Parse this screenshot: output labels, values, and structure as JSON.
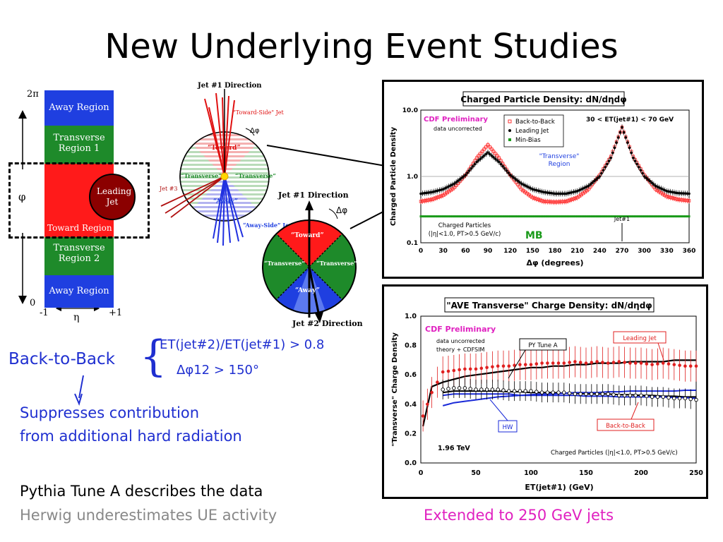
{
  "title": "New Underlying Event Studies",
  "left_diagram": {
    "two_pi": "2π",
    "zero": "0",
    "phi": "φ",
    "eta": "η",
    "minus_one": "-1",
    "plus_one": "+1",
    "regions": [
      "Away Region",
      "Transverse Region 1",
      "Toward Region",
      "Transverse Region 2",
      "Away Region"
    ],
    "leading_jet": "Leading Jet",
    "colors": {
      "away": "#1f3fe0",
      "transverse": "#1e8a2a",
      "toward": "#ff1a1a",
      "jet": "#8b0000"
    }
  },
  "jet_diagram": {
    "jet1_direction_top": "Jet #1 Direction",
    "toward_side": "\"Toward-Side\" Jet",
    "toward": "“Toward”",
    "transverse": "“Transverse”",
    "away": "“Away”",
    "away_side": "“Away-Side” Jet",
    "jet3": "Jet #3",
    "delta_phi": "Δφ",
    "jet1_direction": "Jet #1 Direction",
    "jet2_direction": "Jet #2 Direction"
  },
  "cuts": {
    "line1": "ET(jet#2)/ET(jet#1) > 0.8",
    "line2": "Δφ12 > 150°"
  },
  "notes": {
    "back_to_back": "Back-to-Back",
    "suppresses1": "Suppresses contribution",
    "suppresses2": "from additional hard radiation",
    "pythia": "Pythia Tune A describes the data",
    "herwig": "Herwig underestimates UE activity",
    "extended": "Extended to 250 GeV jets"
  },
  "chart_data": [
    {
      "type": "scatter",
      "title": "Charged Particle Density: dN/dηdφ",
      "xlabel": "Δφ  (degrees)",
      "ylabel": "Charged Particle Density",
      "xlim": [
        0,
        360
      ],
      "ylim": [
        0.1,
        10.0
      ],
      "log_y": true,
      "xticks": [
        0,
        30,
        60,
        90,
        120,
        150,
        180,
        210,
        240,
        270,
        300,
        330,
        360
      ],
      "yticks": [
        "0.1",
        "1.0",
        "10.0"
      ],
      "annotations": [
        "CDF Preliminary",
        "data uncorrected",
        "30 < ET(jet#1) < 70 GeV",
        "\"Transverse\" Region",
        "Charged Particles",
        "(|η|<1.0, PT>0.5 GeV/c)",
        "Jet#1",
        "MB"
      ],
      "legend": {
        "placement": "top-left",
        "entries": [
          "Back-to-Back",
          "Leading Jet",
          "Min-Bias"
        ]
      },
      "x": [
        0,
        15,
        30,
        45,
        60,
        75,
        90,
        105,
        120,
        135,
        150,
        165,
        180,
        195,
        210,
        225,
        240,
        255,
        270,
        285,
        300,
        315,
        330,
        345,
        360
      ],
      "series": [
        {
          "name": "Back-to-Back",
          "color": "#ff3030",
          "values": [
            0.42,
            0.45,
            0.52,
            0.68,
            1.05,
            1.9,
            3.0,
            1.9,
            1.05,
            0.64,
            0.48,
            0.42,
            0.41,
            0.42,
            0.48,
            0.64,
            1.05,
            2.0,
            5.5,
            2.0,
            1.05,
            0.64,
            0.5,
            0.45,
            0.43
          ]
        },
        {
          "name": "Leading Jet",
          "color": "#000000",
          "values": [
            0.55,
            0.58,
            0.64,
            0.78,
            1.05,
            1.65,
            2.3,
            1.65,
            1.05,
            0.78,
            0.64,
            0.58,
            0.55,
            0.55,
            0.6,
            0.72,
            1.0,
            1.9,
            5.5,
            1.9,
            1.0,
            0.72,
            0.6,
            0.56,
            0.55
          ]
        },
        {
          "name": "Min-Bias",
          "color": "#1a9a1a",
          "values": [
            0.25,
            0.25,
            0.25,
            0.25,
            0.25,
            0.25,
            0.25,
            0.25,
            0.25,
            0.25,
            0.25,
            0.25,
            0.25,
            0.25,
            0.25,
            0.25,
            0.25,
            0.25,
            0.25,
            0.25,
            0.25,
            0.25,
            0.25,
            0.25,
            0.25
          ]
        }
      ]
    },
    {
      "type": "scatter",
      "title": "\"AVE Transverse\" Charge Density: dN/dηdφ",
      "xlabel": "ET(jet#1)   (GeV)",
      "ylabel": "\"Transverse\" Charge Density",
      "xlim": [
        0,
        250
      ],
      "ylim": [
        0.0,
        1.0
      ],
      "xticks": [
        0,
        50,
        100,
        150,
        200,
        250
      ],
      "yticks": [
        "0.0",
        "0.2",
        "0.4",
        "0.6",
        "0.8",
        "1.0"
      ],
      "annotations": [
        "CDF Preliminary",
        "data uncorrected",
        "theory + CDFSIM",
        "1.96 TeV",
        "Charged Particles (|η|<1.0, PT>0.5 GeV/c)"
      ],
      "labels": {
        "py_tune_a": "PY Tune A",
        "hw": "HW",
        "leading_jet": "Leading Jet",
        "back_to_back": "Back-to-Back"
      },
      "x": [
        2,
        10,
        20,
        30,
        40,
        50,
        60,
        70,
        80,
        90,
        100,
        110,
        120,
        130,
        140,
        150,
        160,
        170,
        180,
        190,
        200,
        210,
        220,
        230,
        240,
        250
      ],
      "series": [
        {
          "name": "Leading Jet",
          "color": "#e02020",
          "values": [
            0.32,
            0.48,
            0.62,
            0.63,
            0.64,
            0.64,
            0.65,
            0.66,
            0.66,
            0.67,
            0.67,
            0.68,
            0.68,
            0.68,
            0.69,
            0.68,
            0.69,
            0.68,
            0.69,
            0.68,
            0.68,
            0.67,
            0.68,
            0.67,
            0.66,
            0.66
          ]
        },
        {
          "name": "Back-to-Back",
          "color": "#000000",
          "values": [
            null,
            null,
            0.5,
            0.51,
            0.51,
            0.5,
            0.5,
            0.5,
            0.49,
            0.49,
            0.49,
            0.48,
            0.48,
            0.48,
            0.47,
            0.47,
            0.47,
            0.47,
            0.46,
            0.46,
            0.46,
            0.45,
            0.45,
            0.44,
            0.44,
            0.43
          ]
        },
        {
          "name": "PY Tune A",
          "color": "#000000",
          "values": [
            0.25,
            0.52,
            0.55,
            0.57,
            0.59,
            0.6,
            0.61,
            0.62,
            0.63,
            0.64,
            0.65,
            0.65,
            0.66,
            0.66,
            0.67,
            0.67,
            0.68,
            0.68,
            0.68,
            0.69,
            0.69,
            0.69,
            0.69,
            0.7,
            0.7,
            0.7
          ]
        },
        {
          "name": "HW",
          "color": "#1a2ad8",
          "values": [
            null,
            null,
            0.39,
            0.41,
            0.42,
            0.43,
            0.44,
            0.45,
            0.455,
            0.46,
            0.465,
            0.47,
            0.47,
            0.475,
            0.48,
            0.48,
            0.48,
            0.485,
            0.485,
            0.49,
            0.49,
            0.49,
            0.49,
            0.49,
            0.495,
            0.495
          ]
        },
        {
          "name": "HW Back-to-Back",
          "color": "#1a2ad8",
          "values": [
            null,
            null,
            0.46,
            0.47,
            0.47,
            0.47,
            0.47,
            0.47,
            0.47,
            0.46,
            0.46,
            0.46,
            0.46,
            0.46,
            0.46,
            0.455,
            0.455,
            0.455,
            0.45,
            0.45,
            0.45,
            0.45,
            0.45,
            0.445,
            0.445,
            0.44
          ]
        },
        {
          "name": "PY Back-to-Back",
          "color": "#000000",
          "values": [
            null,
            null,
            0.48,
            0.49,
            0.49,
            0.49,
            0.49,
            0.49,
            0.485,
            0.485,
            0.48,
            0.48,
            0.48,
            0.475,
            0.475,
            0.47,
            0.47,
            0.47,
            0.465,
            0.465,
            0.46,
            0.46,
            0.455,
            0.455,
            0.45,
            0.45
          ]
        }
      ]
    }
  ]
}
